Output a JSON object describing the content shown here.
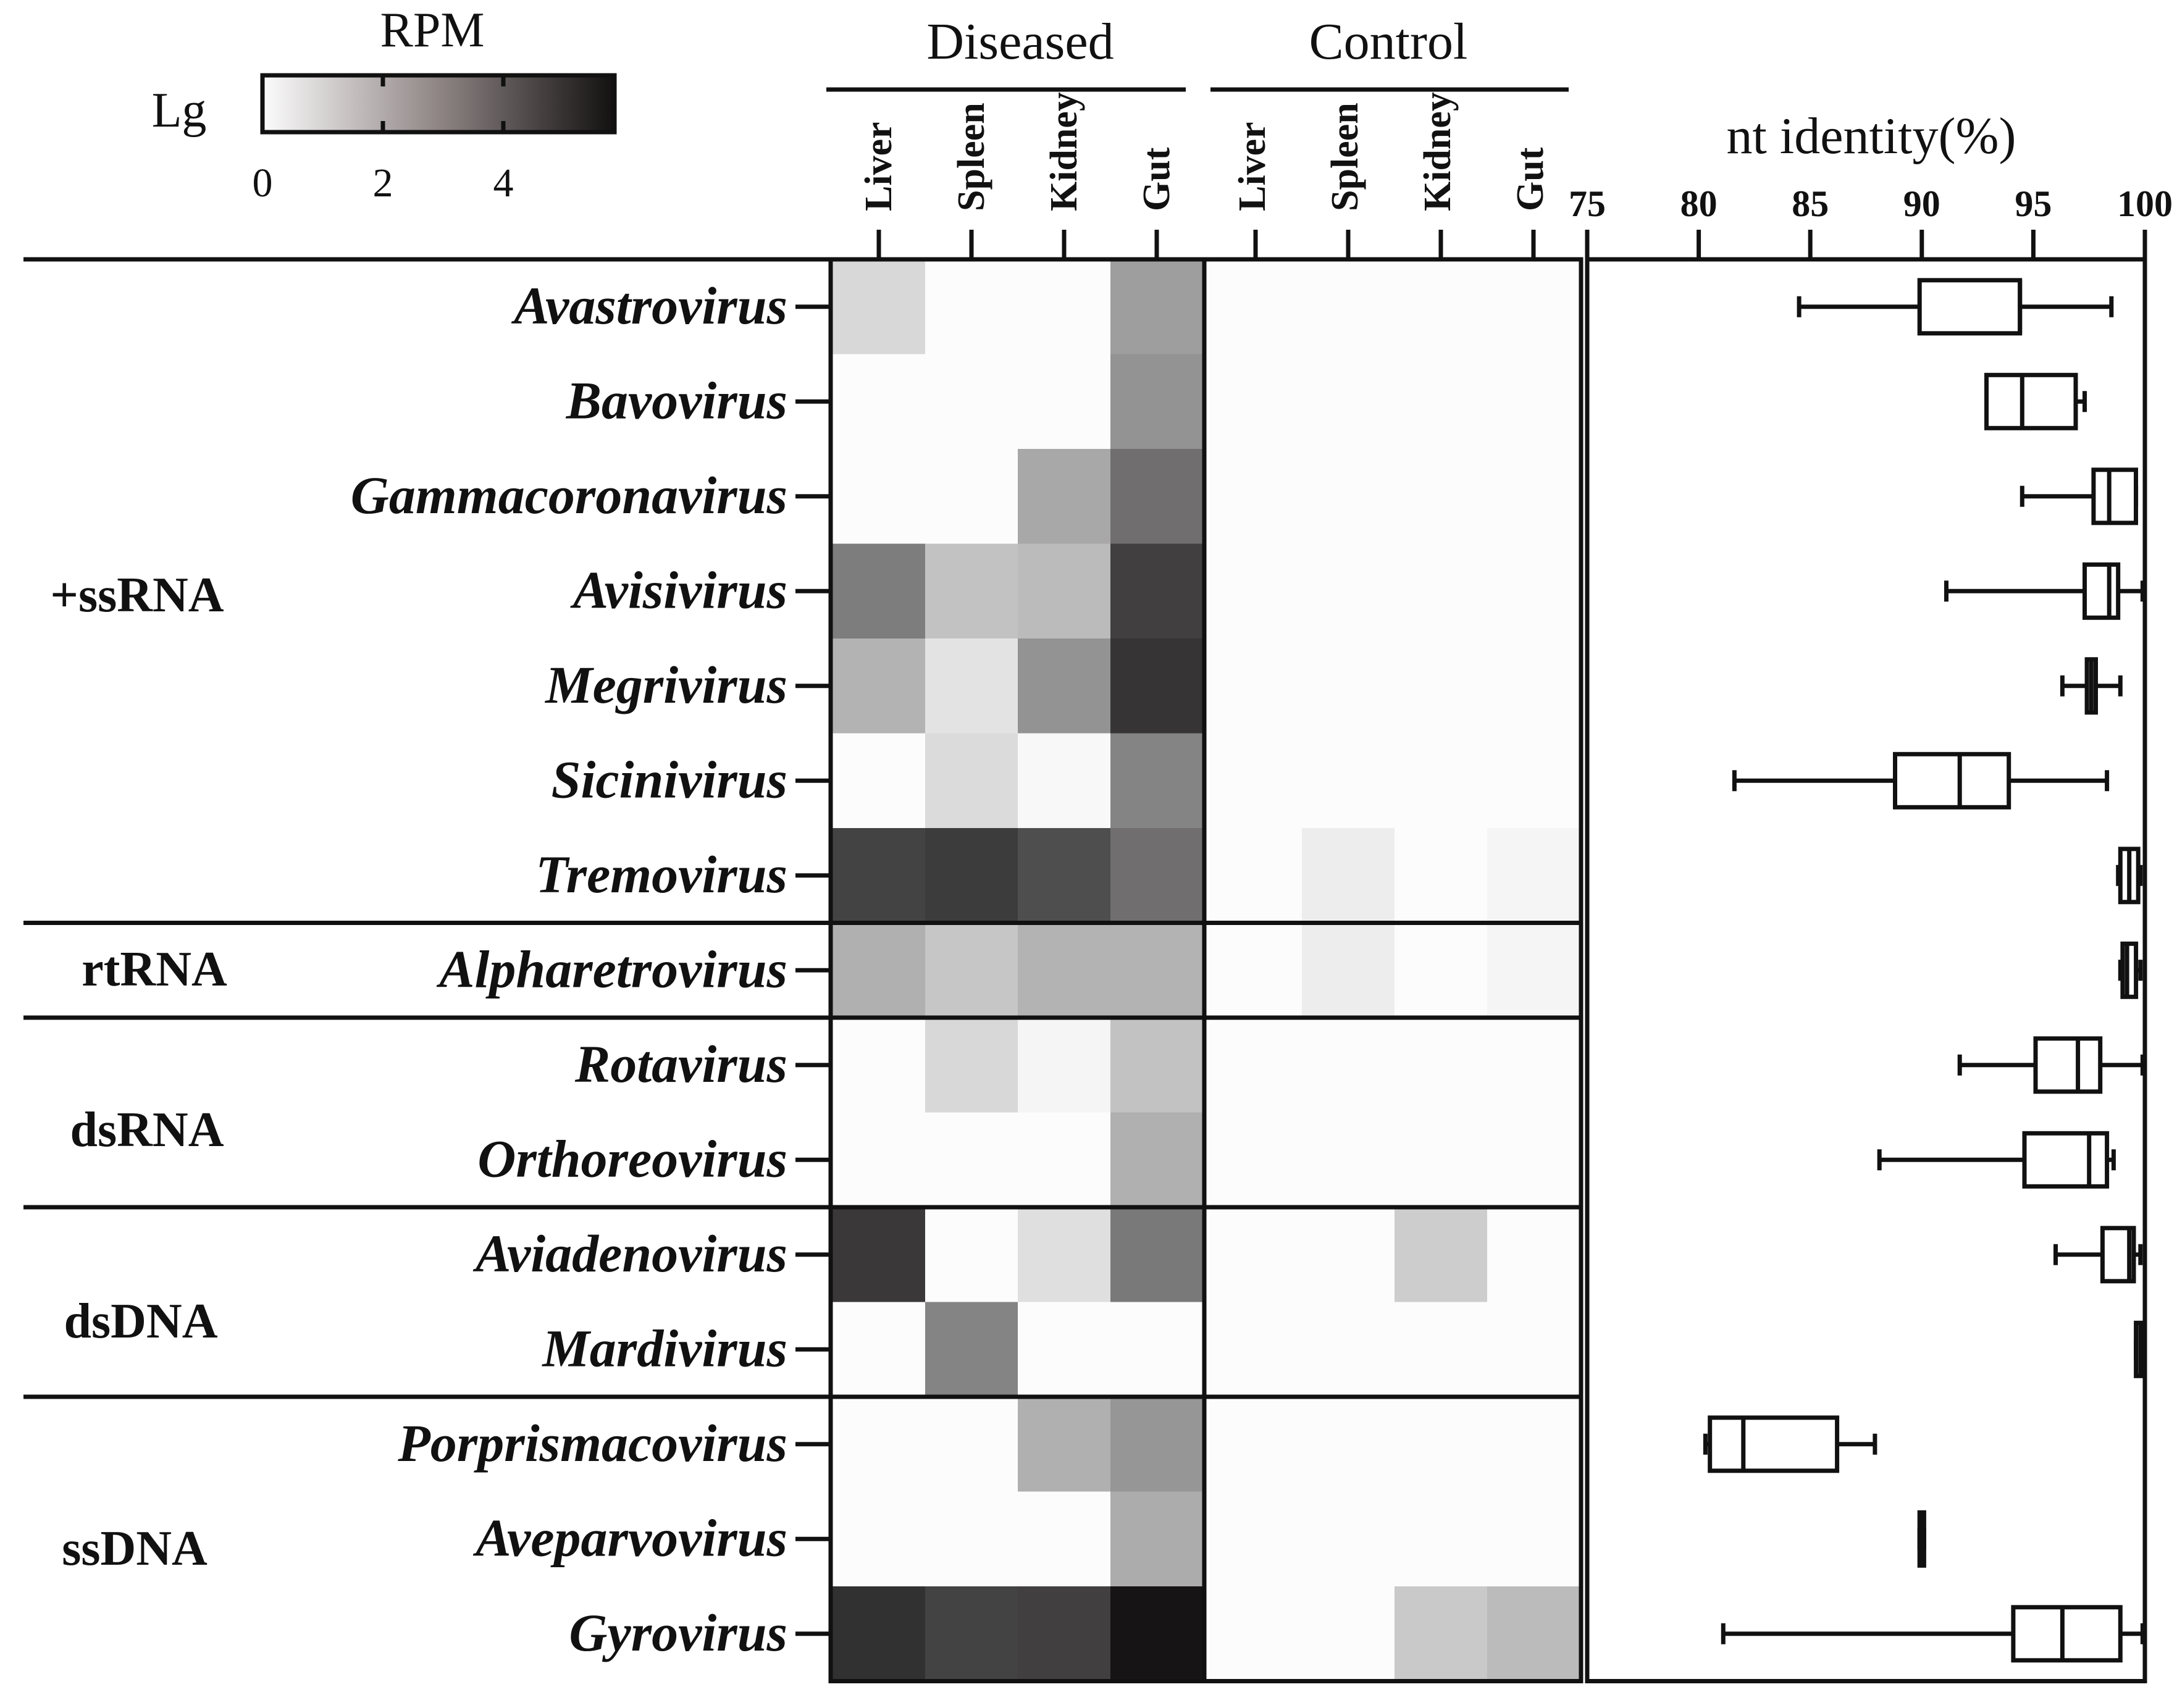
{
  "chart_data": [
    {
      "type": "heatmap",
      "title": "",
      "legend": {
        "title": "RPM",
        "scale_label": "Lg",
        "ticks": [
          "0",
          "2",
          "4"
        ],
        "range": [
          0,
          6
        ]
      },
      "groups": [
        {
          "name": "Diseased",
          "columns": [
            "Liver",
            "Spleen",
            "Kidney",
            "Gut"
          ]
        },
        {
          "name": "Control",
          "columns": [
            "Liver",
            "Spleen",
            "Kidney",
            "Gut"
          ]
        }
      ],
      "virus_classes": [
        {
          "name": "+ssRNA",
          "rows": [
            "Avastrovirus",
            "Bavovirus",
            "Gammacoronavirus",
            "Avisivirus",
            "Megrivirus",
            "Sicinivirus",
            "Tremovirus"
          ]
        },
        {
          "name": "rtRNA",
          "rows": [
            "Alpharetrovirus"
          ]
        },
        {
          "name": "dsRNA",
          "rows": [
            "Rotavirus",
            "Orthoreovirus"
          ]
        },
        {
          "name": "dsDNA",
          "rows": [
            "Aviadenovirus",
            "Mardivirus"
          ]
        },
        {
          "name": "ssDNA",
          "rows": [
            "Porprismacovirus",
            "Aveparvovirus",
            "Gyrovirus"
          ]
        }
      ],
      "rows": [
        "Avastrovirus",
        "Bavovirus",
        "Gammacoronavirus",
        "Avisivirus",
        "Megrivirus",
        "Sicinivirus",
        "Tremovirus",
        "Alpharetrovirus",
        "Rotavirus",
        "Orthoreovirus",
        "Aviadenovirus",
        "Mardivirus",
        "Porprismacovirus",
        "Aveparvovirus",
        "Gyrovirus"
      ],
      "values": [
        [
          1.0,
          0.0,
          0.0,
          2.6,
          0.0,
          0.0,
          0.0,
          0.0
        ],
        [
          0.0,
          0.0,
          0.0,
          2.9,
          0.0,
          0.0,
          0.0,
          0.0
        ],
        [
          0.0,
          0.0,
          2.3,
          3.9,
          0.0,
          0.0,
          0.0,
          0.0
        ],
        [
          3.5,
          1.6,
          1.8,
          5.2,
          0.0,
          0.0,
          0.0,
          0.0
        ],
        [
          2.0,
          0.7,
          2.9,
          5.5,
          0.0,
          0.0,
          0.0,
          0.0
        ],
        [
          0.0,
          0.9,
          0.1,
          3.3,
          0.0,
          0.0,
          0.0,
          0.0
        ],
        [
          5.1,
          5.3,
          4.8,
          3.9,
          0.0,
          0.4,
          0.0,
          0.2
        ],
        [
          2.1,
          1.5,
          2.0,
          2.0,
          0.0,
          0.4,
          0.0,
          0.2
        ],
        [
          0.0,
          1.0,
          0.2,
          1.6,
          0.0,
          0.0,
          0.0,
          0.0
        ],
        [
          0.0,
          0.0,
          0.0,
          2.1,
          0.0,
          0.0,
          0.0,
          0.0
        ],
        [
          5.4,
          0.0,
          0.8,
          3.6,
          0.0,
          0.0,
          1.3,
          0.0
        ],
        [
          0.0,
          3.3,
          0.0,
          0.0,
          0.0,
          0.0,
          0.0,
          0.0
        ],
        [
          0.0,
          0.0,
          2.1,
          2.8,
          0.0,
          0.0,
          0.0,
          0.0
        ],
        [
          0.0,
          0.0,
          0.0,
          2.2,
          0.0,
          0.0,
          0.0,
          0.0
        ],
        [
          5.6,
          5.1,
          5.2,
          6.4,
          0.0,
          0.0,
          1.4,
          1.8
        ]
      ]
    },
    {
      "type": "boxplot",
      "xlabel": "nt identity(%)",
      "xlim": [
        75,
        100
      ],
      "xticks": [
        "75",
        "80",
        "85",
        "90",
        "95",
        "100"
      ],
      "categories": [
        "Avastrovirus",
        "Bavovirus",
        "Gammacoronavirus",
        "Avisivirus",
        "Megrivirus",
        "Sicinivirus",
        "Tremovirus",
        "Alpharetrovirus",
        "Rotavirus",
        "Orthoreovirus",
        "Aviadenovirus",
        "Mardivirus",
        "Porprismacovirus",
        "Aveparvovirus",
        "Gyrovirus"
      ],
      "boxes": [
        {
          "min": 84.5,
          "q1": 89.9,
          "median": 94.4,
          "q3": 94.4,
          "max": 98.5
        },
        {
          "min": 92.9,
          "q1": 92.9,
          "median": 94.5,
          "q3": 96.9,
          "max": 97.3
        },
        {
          "min": 94.5,
          "q1": 97.7,
          "median": 98.4,
          "q3": 99.6,
          "max": 99.6
        },
        {
          "min": 91.1,
          "q1": 97.3,
          "median": 98.4,
          "q3": 98.8,
          "max": 99.9
        },
        {
          "min": 96.3,
          "q1": 97.4,
          "median": 97.6,
          "q3": 97.8,
          "max": 98.9
        },
        {
          "min": 81.6,
          "q1": 88.8,
          "median": 91.7,
          "q3": 93.9,
          "max": 98.3
        },
        {
          "min": 98.8,
          "q1": 98.9,
          "median": 99.3,
          "q3": 99.7,
          "max": 99.8
        },
        {
          "min": 98.9,
          "q1": 99.0,
          "median": 99.2,
          "q3": 99.6,
          "max": 99.8
        },
        {
          "min": 91.7,
          "q1": 95.1,
          "median": 97.0,
          "q3": 98.0,
          "max": 99.9
        },
        {
          "min": 88.1,
          "q1": 94.6,
          "median": 97.5,
          "q3": 98.3,
          "max": 98.6
        },
        {
          "min": 96.0,
          "q1": 98.1,
          "median": 99.3,
          "q3": 99.5,
          "max": 99.8
        },
        {
          "min": 99.6,
          "q1": 99.6,
          "median": 99.8,
          "q3": 99.9,
          "max": 99.9
        },
        {
          "min": 80.3,
          "q1": 80.5,
          "median": 82.0,
          "q3": 86.2,
          "max": 87.9
        },
        {
          "min": 89.9,
          "q1": 89.9,
          "median": 90.0,
          "q3": 90.1,
          "max": 90.1
        },
        {
          "min": 81.1,
          "q1": 94.1,
          "median": 96.3,
          "q3": 98.9,
          "max": 99.9
        }
      ]
    }
  ],
  "colors": {
    "axis": "#111111",
    "cell_low": "#fcfcfc",
    "cell_high": "#121010",
    "box_fill": "#ffffff"
  }
}
